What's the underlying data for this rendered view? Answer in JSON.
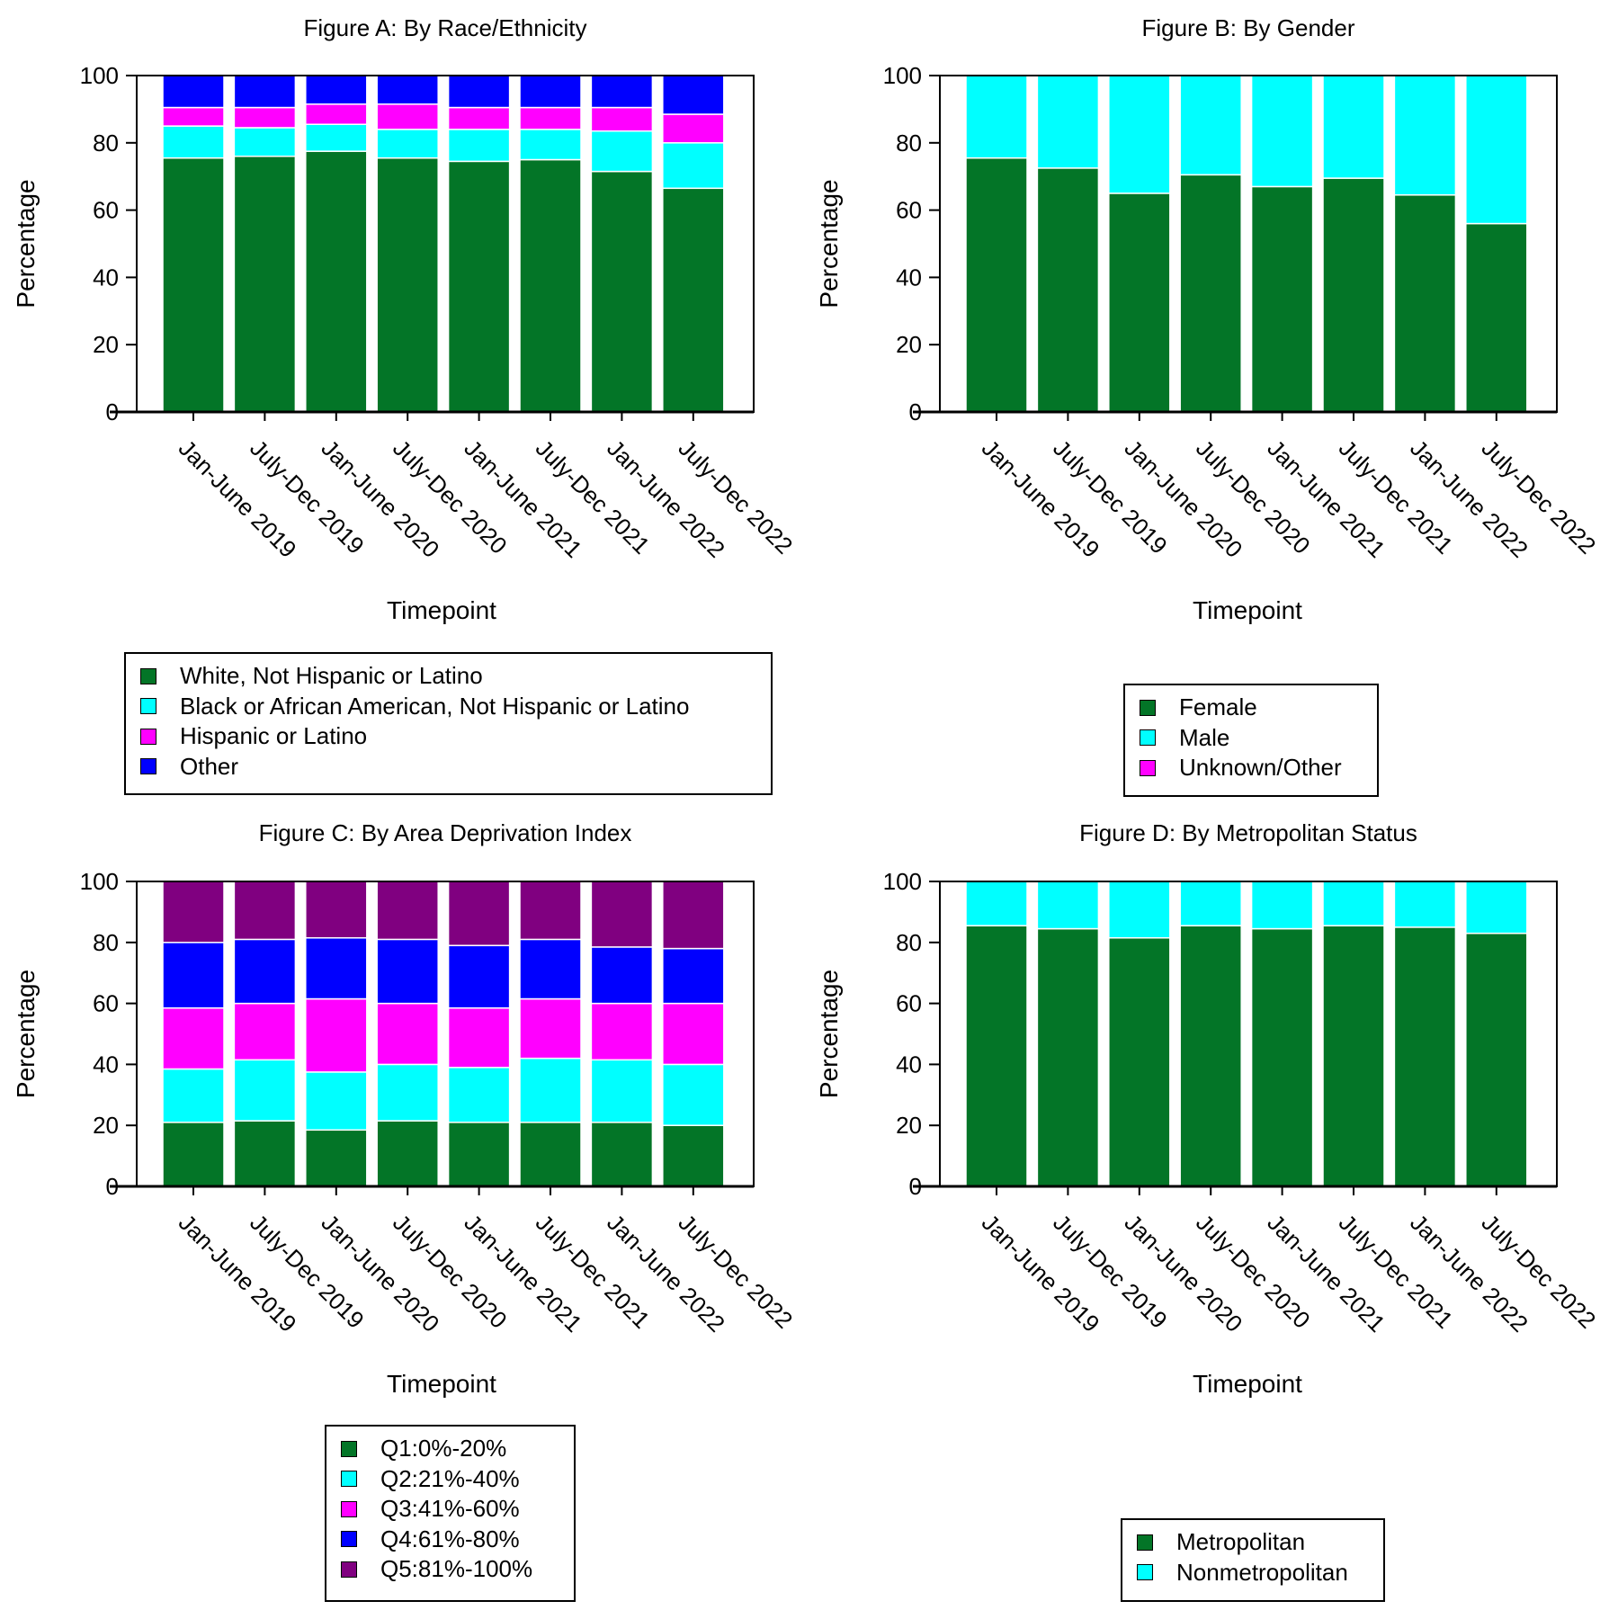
{
  "colors": {
    "green": "#037527",
    "cyan": "#00FFFF",
    "magenta": "#FF00FF",
    "blue": "#0000FF",
    "purple": "#800080"
  },
  "chart_data": [
    {
      "type": "bar",
      "stacked": true,
      "title": "Figure A: By Race/Ethnicity",
      "xlabel": "Timepoint",
      "ylabel": "Percentage",
      "ylim": [
        0,
        100
      ],
      "yticks": [
        0,
        20,
        40,
        60,
        80,
        100
      ],
      "categories": [
        "Jan-June 2019",
        "July-Dec 2019",
        "Jan-June 2020",
        "July-Dec 2020",
        "Jan-June 2021",
        "July-Dec 2021",
        "Jan-June 2022",
        "July-Dec 2022"
      ],
      "series": [
        {
          "name": "White, Not Hispanic or Latino",
          "color": "#037527",
          "values": [
            75.5,
            76,
            77.5,
            75.5,
            74.5,
            75,
            71.5,
            66.5
          ]
        },
        {
          "name": "Black or African American, Not Hispanic or Latino",
          "color": "#00FFFF",
          "values": [
            9.5,
            8.5,
            8,
            8.5,
            9.5,
            9,
            12,
            13.5
          ]
        },
        {
          "name": "Hispanic or Latino",
          "color": "#FF00FF",
          "values": [
            5.5,
            6,
            6,
            7.5,
            6.5,
            6.5,
            7,
            8.5
          ]
        },
        {
          "name": "Other",
          "color": "#0000FF",
          "values": [
            9.5,
            9.5,
            8.5,
            8.5,
            9.5,
            9.5,
            9.5,
            11.5
          ]
        }
      ],
      "legend": [
        "White, Not Hispanic or Latino",
        "Black or African American, Not Hispanic or Latino",
        "Hispanic or Latino",
        "Other"
      ]
    },
    {
      "type": "bar",
      "stacked": true,
      "title": "Figure B: By Gender",
      "xlabel": "Timepoint",
      "ylabel": "Percentage",
      "ylim": [
        0,
        100
      ],
      "yticks": [
        0,
        20,
        40,
        60,
        80,
        100
      ],
      "categories": [
        "Jan-June 2019",
        "July-Dec 2019",
        "Jan-June 2020",
        "July-Dec 2020",
        "Jan-June 2021",
        "July-Dec 2021",
        "Jan-June 2022",
        "July-Dec 2022"
      ],
      "series": [
        {
          "name": "Female",
          "color": "#037527",
          "values": [
            75.5,
            72.5,
            65,
            70.5,
            67,
            69.5,
            64.5,
            56
          ]
        },
        {
          "name": "Male",
          "color": "#00FFFF",
          "values": [
            24.5,
            27.5,
            35,
            29.5,
            33,
            30.5,
            35.5,
            44
          ]
        },
        {
          "name": "Unknown/Other",
          "color": "#FF00FF",
          "values": [
            0,
            0,
            0,
            0,
            0,
            0,
            0,
            0
          ]
        }
      ],
      "legend": [
        "Female",
        "Male",
        "Unknown/Other"
      ]
    },
    {
      "type": "bar",
      "stacked": true,
      "title": "Figure C: By Area Deprivation Index",
      "xlabel": "Timepoint",
      "ylabel": "Percentage",
      "ylim": [
        0,
        100
      ],
      "yticks": [
        0,
        20,
        40,
        60,
        80,
        100
      ],
      "categories": [
        "Jan-June 2019",
        "July-Dec 2019",
        "Jan-June 2020",
        "July-Dec 2020",
        "Jan-June 2021",
        "July-Dec 2021",
        "Jan-June 2022",
        "July-Dec 2022"
      ],
      "series": [
        {
          "name": "Q1:0%-20%",
          "color": "#037527",
          "values": [
            21,
            21.5,
            18.5,
            21.5,
            21,
            21,
            21,
            20
          ]
        },
        {
          "name": "Q2:21%-40%",
          "color": "#00FFFF",
          "values": [
            17.5,
            20,
            19,
            18.5,
            18,
            21,
            20.5,
            20
          ]
        },
        {
          "name": "Q3:41%-60%",
          "color": "#FF00FF",
          "values": [
            20,
            18.5,
            24,
            20,
            19.5,
            19.5,
            18.5,
            20
          ]
        },
        {
          "name": "Q4:61%-80%",
          "color": "#0000FF",
          "values": [
            21.5,
            21,
            20,
            21,
            20.5,
            19.5,
            18.5,
            18
          ]
        },
        {
          "name": "Q5:81%-100%",
          "color": "#800080",
          "values": [
            20,
            19,
            18.5,
            19,
            21,
            19,
            21.5,
            22
          ]
        }
      ],
      "legend": [
        "Q1:0%-20%",
        "Q2:21%-40%",
        "Q3:41%-60%",
        "Q4:61%-80%",
        "Q5:81%-100%"
      ]
    },
    {
      "type": "bar",
      "stacked": true,
      "title": "Figure D: By Metropolitan Status",
      "xlabel": "Timepoint",
      "ylabel": "Percentage",
      "ylim": [
        0,
        100
      ],
      "yticks": [
        0,
        20,
        40,
        60,
        80,
        100
      ],
      "categories": [
        "Jan-June 2019",
        "July-Dec 2019",
        "Jan-June 2020",
        "July-Dec 2020",
        "Jan-June 2021",
        "July-Dec 2021",
        "Jan-June 2022",
        "July-Dec 2022"
      ],
      "series": [
        {
          "name": "Metropolitan",
          "color": "#037527",
          "values": [
            85.5,
            84.5,
            81.5,
            85.5,
            84.5,
            85.5,
            85,
            83
          ]
        },
        {
          "name": "Nonmetropolitan",
          "color": "#00FFFF",
          "values": [
            14.5,
            15.5,
            18.5,
            14.5,
            15.5,
            14.5,
            15,
            17
          ]
        }
      ],
      "legend": [
        "Metropolitan",
        "Nonmetropolitan"
      ]
    }
  ]
}
